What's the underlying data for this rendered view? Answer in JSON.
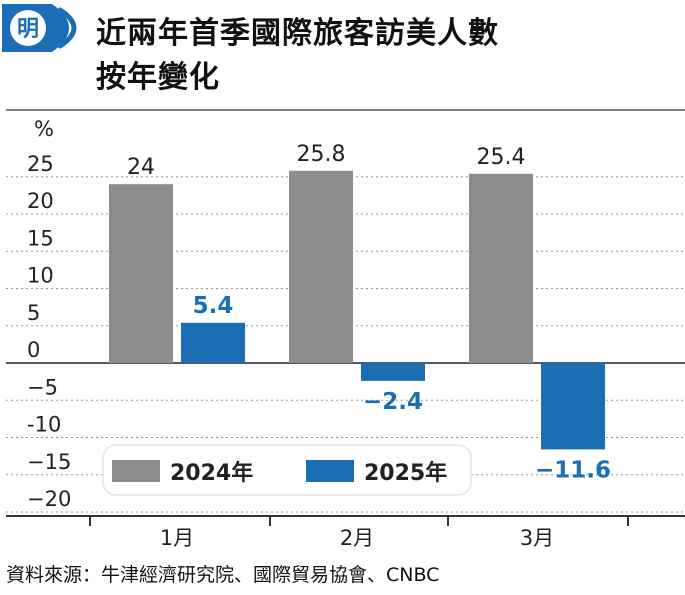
{
  "header": {
    "logo_text": "明",
    "title_line1": "近兩年首季國際旅客訪美人數",
    "title_line2": "按年變化"
  },
  "source": "資料來源：牛津經濟研究院、國際貿易協會、CNBC",
  "colors": {
    "series_2024": "#8c8c8c",
    "series_2025": "#1b6eb3",
    "logo_blue": "#1c6db8",
    "grid": "#9a9a9a"
  },
  "chart_data": {
    "type": "bar",
    "ylabel": "%",
    "ylim": [
      -22,
      28
    ],
    "yticks": [
      25,
      20,
      15,
      10,
      5,
      0,
      -5,
      -10,
      -15,
      -20
    ],
    "ytick_labels": [
      "25",
      "20",
      "15",
      "10",
      "5",
      "0",
      "−5",
      "-10",
      "−15",
      "−20"
    ],
    "categories": [
      "1月",
      "2月",
      "3月"
    ],
    "grid": true,
    "legend_position": "bottom-left",
    "series": [
      {
        "name": "2024年",
        "values": [
          24,
          25.8,
          25.4
        ],
        "labels": [
          "24",
          "25.8",
          "25.4"
        ]
      },
      {
        "name": "2025年",
        "values": [
          5.4,
          -2.4,
          -11.6
        ],
        "labels": [
          "5.4",
          "−2.4",
          "−11.6"
        ]
      }
    ]
  }
}
